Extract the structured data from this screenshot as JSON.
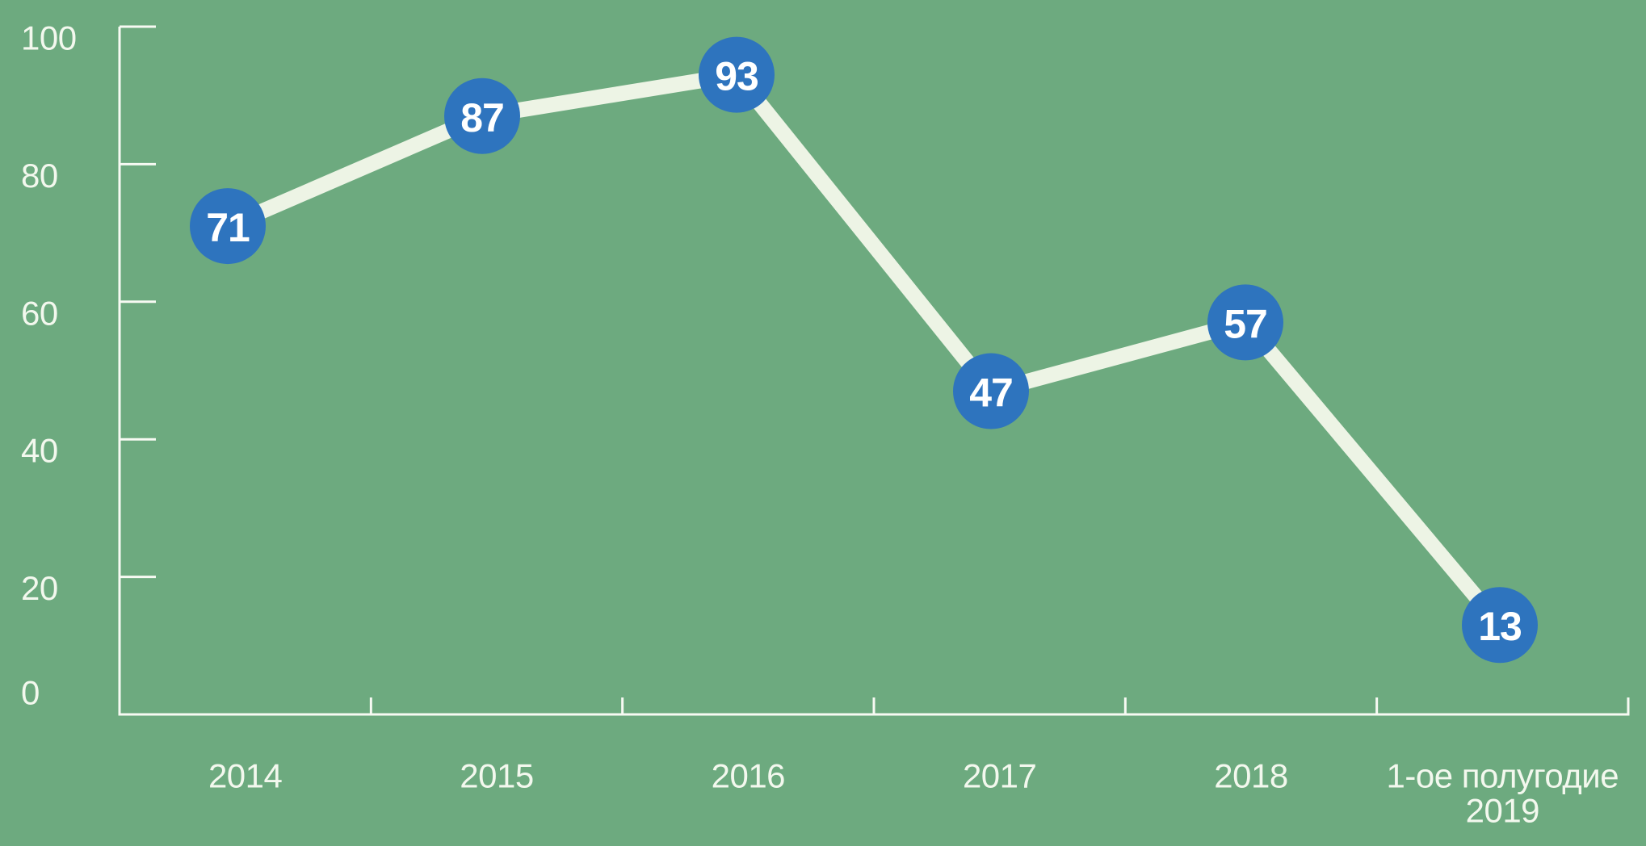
{
  "chart_data": {
    "type": "line",
    "title": "",
    "xlabel": "",
    "ylabel": "",
    "categories": [
      "2014",
      "2015",
      "2016",
      "2017",
      "2018",
      "1-ое полугодие 2019"
    ],
    "x_labels": [
      [
        "2014"
      ],
      [
        "2015"
      ],
      [
        "2016"
      ],
      [
        "2017"
      ],
      [
        "2018"
      ],
      [
        "1-ое полугодие",
        "2019"
      ]
    ],
    "values": [
      71,
      87,
      93,
      47,
      57,
      13
    ],
    "y_ticks": [
      0,
      20,
      40,
      60,
      80,
      100
    ],
    "y_tick_labels": [
      "0",
      "20",
      "40",
      "60",
      "80",
      "100"
    ],
    "ylim": [
      0,
      100
    ],
    "grid": false,
    "legend_position": "none",
    "marker_shape": "circle",
    "colors": {
      "background": "#6DAA7F",
      "marker_fill": "#2E74BE",
      "marker_text": "#FFFFFF",
      "line": "#EDF4E5",
      "axis": "#F7FAF3",
      "tick_label": "#F3F8EE"
    }
  }
}
